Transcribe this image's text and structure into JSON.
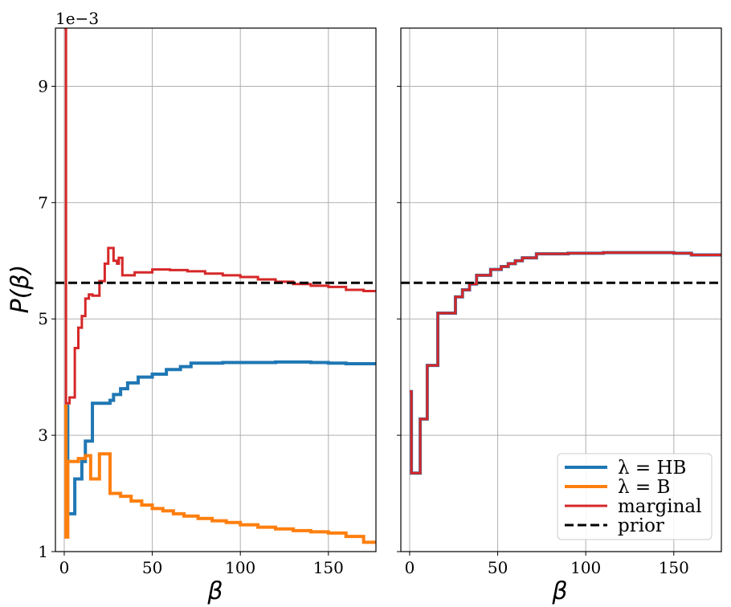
{
  "chart_data": [
    {
      "type": "line",
      "panel": "left",
      "xlabel": "β",
      "ylabel": "P(β)",
      "y_offset_label": "1e−3",
      "xlim": [
        -5,
        177
      ],
      "ylim": [
        1,
        10
      ],
      "xticks": [
        0,
        50,
        100,
        150
      ],
      "yticks": [
        1,
        3,
        5,
        7,
        9
      ],
      "grid": true,
      "series": [
        {
          "name": "λ = HB",
          "color": "#1f77b4",
          "step": true,
          "points": [
            [
              0,
              3.5
            ],
            [
              2,
              1.65
            ],
            [
              6,
              2.25
            ],
            [
              10,
              2.55
            ],
            [
              12,
              2.9
            ],
            [
              16,
              3.55
            ],
            [
              26,
              3.6
            ],
            [
              28,
              3.7
            ],
            [
              32,
              3.8
            ],
            [
              36,
              3.9
            ],
            [
              42,
              4.0
            ],
            [
              50,
              4.05
            ],
            [
              58,
              4.13
            ],
            [
              66,
              4.18
            ],
            [
              72,
              4.24
            ],
            [
              90,
              4.25
            ],
            [
              100,
              4.25
            ],
            [
              120,
              4.26
            ],
            [
              140,
              4.25
            ],
            [
              150,
              4.24
            ],
            [
              160,
              4.23
            ],
            [
              177,
              4.22
            ]
          ]
        },
        {
          "name": "λ = B",
          "color": "#ff7f0e",
          "step": true,
          "points": [
            [
              0,
              3.5
            ],
            [
              1,
              1.25
            ],
            [
              2,
              2.55
            ],
            [
              8,
              2.6
            ],
            [
              12,
              2.65
            ],
            [
              15,
              2.25
            ],
            [
              20,
              2.68
            ],
            [
              26,
              2.0
            ],
            [
              32,
              1.95
            ],
            [
              38,
              1.87
            ],
            [
              44,
              1.8
            ],
            [
              50,
              1.74
            ],
            [
              56,
              1.7
            ],
            [
              62,
              1.65
            ],
            [
              68,
              1.61
            ],
            [
              76,
              1.57
            ],
            [
              84,
              1.53
            ],
            [
              92,
              1.5
            ],
            [
              100,
              1.46
            ],
            [
              110,
              1.42
            ],
            [
              120,
              1.39
            ],
            [
              130,
              1.36
            ],
            [
              140,
              1.34
            ],
            [
              150,
              1.32
            ],
            [
              160,
              1.26
            ],
            [
              170,
              1.16
            ],
            [
              177,
              1.16
            ]
          ]
        },
        {
          "name": "marginal",
          "color": "#d62728",
          "step": true,
          "points": [
            [
              0,
              10
            ],
            [
              1,
              3.55
            ],
            [
              3,
              3.65
            ],
            [
              6,
              4.5
            ],
            [
              8,
              4.85
            ],
            [
              10,
              5.05
            ],
            [
              12,
              5.35
            ],
            [
              14,
              5.42
            ],
            [
              16,
              5.4
            ],
            [
              20,
              5.65
            ],
            [
              23,
              5.95
            ],
            [
              25,
              6.22
            ],
            [
              28,
              6.0
            ],
            [
              30,
              5.95
            ],
            [
              31,
              6.05
            ],
            [
              33,
              5.75
            ],
            [
              40,
              5.8
            ],
            [
              50,
              5.85
            ],
            [
              60,
              5.84
            ],
            [
              70,
              5.82
            ],
            [
              80,
              5.78
            ],
            [
              90,
              5.75
            ],
            [
              100,
              5.72
            ],
            [
              110,
              5.68
            ],
            [
              120,
              5.64
            ],
            [
              130,
              5.6
            ],
            [
              140,
              5.57
            ],
            [
              150,
              5.55
            ],
            [
              160,
              5.5
            ],
            [
              170,
              5.48
            ],
            [
              177,
              5.48
            ]
          ]
        },
        {
          "name": "prior",
          "color": "#000000",
          "dashed": true,
          "points": [
            [
              -5,
              5.62
            ],
            [
              177,
              5.62
            ]
          ]
        }
      ]
    },
    {
      "type": "line",
      "panel": "right",
      "xlabel": "β",
      "xlim": [
        -5,
        177
      ],
      "ylim": [
        1,
        10
      ],
      "xticks": [
        0,
        50,
        100,
        150
      ],
      "grid": true,
      "series": [
        {
          "name": "λ = HB",
          "color": "#1f77b4",
          "step": true,
          "points": [
            [
              0,
              3.75
            ],
            [
              1,
              2.35
            ],
            [
              6,
              3.28
            ],
            [
              10,
              4.2
            ],
            [
              16,
              5.1
            ],
            [
              26,
              5.38
            ],
            [
              30,
              5.5
            ],
            [
              34,
              5.6
            ],
            [
              38,
              5.75
            ],
            [
              46,
              5.85
            ],
            [
              52,
              5.9
            ],
            [
              56,
              5.95
            ],
            [
              60,
              6.0
            ],
            [
              64,
              6.05
            ],
            [
              72,
              6.12
            ],
            [
              90,
              6.13
            ],
            [
              110,
              6.14
            ],
            [
              150,
              6.13
            ],
            [
              160,
              6.1
            ],
            [
              177,
              6.1
            ]
          ]
        },
        {
          "name": "marginal",
          "color": "#d62728",
          "step": true,
          "points": [
            [
              0,
              3.75
            ],
            [
              1,
              2.35
            ],
            [
              6,
              3.28
            ],
            [
              10,
              4.2
            ],
            [
              16,
              5.1
            ],
            [
              26,
              5.38
            ],
            [
              30,
              5.5
            ],
            [
              34,
              5.6
            ],
            [
              38,
              5.75
            ],
            [
              46,
              5.85
            ],
            [
              52,
              5.9
            ],
            [
              56,
              5.95
            ],
            [
              60,
              6.0
            ],
            [
              64,
              6.05
            ],
            [
              72,
              6.12
            ],
            [
              90,
              6.13
            ],
            [
              110,
              6.14
            ],
            [
              150,
              6.13
            ],
            [
              160,
              6.1
            ],
            [
              177,
              6.1
            ]
          ]
        },
        {
          "name": "prior",
          "color": "#000000",
          "dashed": true,
          "points": [
            [
              -5,
              5.62
            ],
            [
              177,
              5.62
            ]
          ]
        }
      ],
      "legend": {
        "placement": "bottom-right",
        "entries": [
          {
            "label": "λ = HB",
            "color": "#1f77b4",
            "style": "solid-thick"
          },
          {
            "label": "λ = B",
            "color": "#ff7f0e",
            "style": "solid-thick"
          },
          {
            "label": "marginal",
            "color": "#d62728",
            "style": "solid"
          },
          {
            "label": "prior",
            "color": "#000000",
            "style": "dashed"
          }
        ]
      }
    }
  ]
}
